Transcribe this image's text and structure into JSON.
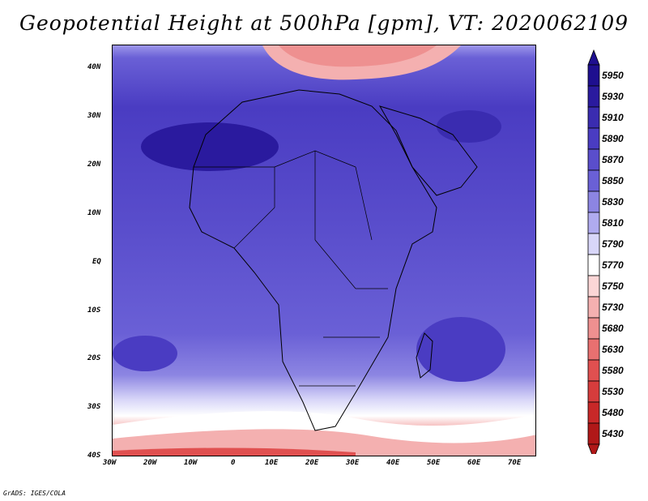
{
  "title": "Geopotential Height at 500hPa [gpm], VT: 2020062109",
  "credit": "GrADS: IGES/COLA",
  "axes": {
    "lat_labels": [
      "40N",
      "30N",
      "20N",
      "10N",
      "EQ",
      "10S",
      "20S",
      "30S",
      "40S"
    ],
    "lon_labels": [
      "30W",
      "20W",
      "10W",
      "0",
      "10E",
      "20E",
      "30E",
      "40E",
      "50E",
      "60E",
      "70E"
    ]
  },
  "colorbar": {
    "levels": [
      "5950",
      "5930",
      "5910",
      "5890",
      "5870",
      "5850",
      "5830",
      "5810",
      "5790",
      "5770",
      "5750",
      "5730",
      "5680",
      "5630",
      "5580",
      "5530",
      "5480",
      "5430"
    ],
    "colors": [
      "#1e0f8f",
      "#2a1a9e",
      "#3a2cb0",
      "#4a3cc2",
      "#5a4ecc",
      "#6a60d6",
      "#8c85e2",
      "#b0abef",
      "#d8d6f8",
      "#ffffff",
      "#fbd6d6",
      "#f4b0b0",
      "#ee9090",
      "#e87070",
      "#e05050",
      "#d63c3c",
      "#c82828",
      "#b01818"
    ]
  },
  "map": {
    "region": "Africa, 40S-45N, 30W-75E",
    "variable": "500hPa geopotential height"
  }
}
